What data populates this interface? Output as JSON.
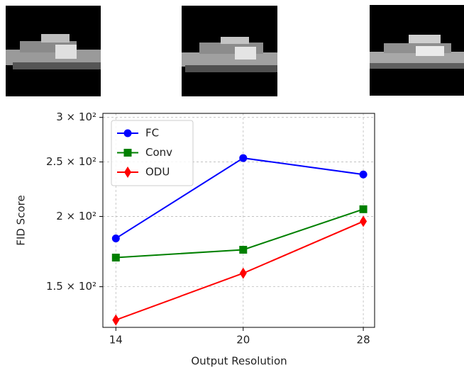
{
  "chart_data": {
    "type": "line",
    "x_label": "Output Resolution",
    "y_label": "FID Score",
    "x": [
      14,
      20,
      28
    ],
    "xlim": [
      13.5,
      28.9
    ],
    "xticks": [
      14,
      20,
      28
    ],
    "x_log": true,
    "ylim": [
      127,
      305
    ],
    "y_log": true,
    "yticks": [
      {
        "value": 150,
        "label": "1.5 × 10²"
      },
      {
        "value": 200,
        "label": "2 × 10²"
      },
      {
        "value": 250,
        "label": "2.5 × 10²"
      },
      {
        "value": 300,
        "label": "3 × 10²"
      }
    ],
    "grid": true,
    "legend": "upper left",
    "series": [
      {
        "name": "FC",
        "color": "#0000ff",
        "marker": "circle",
        "values": [
          182.8,
          254,
          237.5
        ]
      },
      {
        "name": "Conv",
        "color": "#008000",
        "marker": "square",
        "values": [
          169,
          174.5,
          206
        ]
      },
      {
        "name": "ODU",
        "color": "#ff0000",
        "marker": "diamond",
        "values": [
          130.9,
          158.5,
          196
        ]
      }
    ]
  }
}
